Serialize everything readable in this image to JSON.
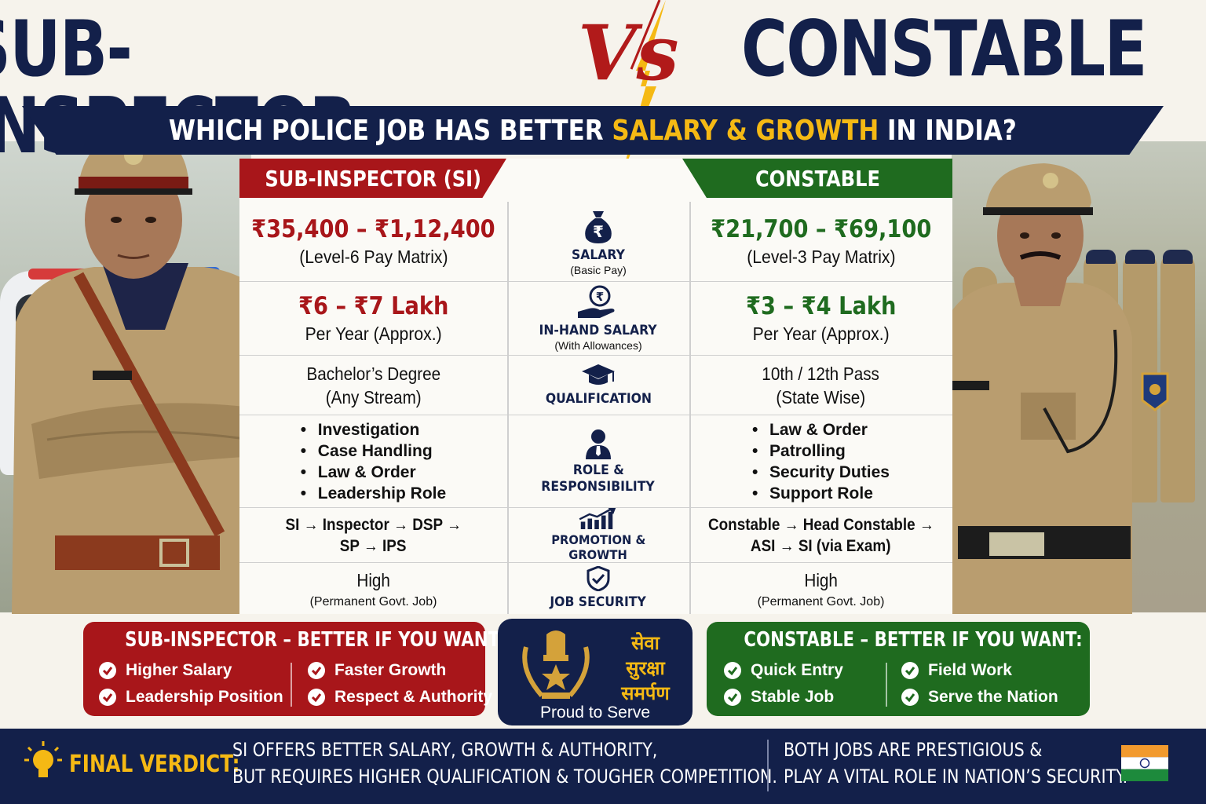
{
  "title": {
    "left": "SUB-INSPECTOR",
    "vs": "Vs",
    "right": "CONSTABLE"
  },
  "subtitle": {
    "before": "WHICH POLICE JOB HAS BETTER ",
    "highlight": "SALARY & GROWTH",
    "after": " IN INDIA?"
  },
  "columns": {
    "si": "SUB-INSPECTOR (SI)",
    "constable": "CONSTABLE"
  },
  "rows": {
    "salary": {
      "label": "SALARY",
      "sublabel": "(Basic Pay)",
      "si_value": "₹35,400 – ₹1,12,400",
      "si_note": "(Level-6 Pay Matrix)",
      "c_value": "₹21,700 – ₹69,100",
      "c_note": "(Level-3 Pay Matrix)"
    },
    "inhand": {
      "label": "IN-HAND SALARY",
      "sublabel": "(With Allowances)",
      "si_value": "₹6 – ₹7 Lakh",
      "si_note": "Per Year (Approx.)",
      "c_value": "₹3 – ₹4 Lakh",
      "c_note": "Per Year (Approx.)"
    },
    "qualification": {
      "label": "QUALIFICATION",
      "si_line1": "Bachelor’s Degree",
      "si_line2": "(Any Stream)",
      "c_line1": "10th / 12th Pass",
      "c_line2": "(State Wise)"
    },
    "role": {
      "label1": "ROLE &",
      "label2": "RESPONSIBILITY",
      "si_items": [
        "Investigation",
        "Case Handling",
        "Law & Order",
        "Leadership Role"
      ],
      "c_items": [
        "Law & Order",
        "Patrolling",
        "Security Duties",
        "Support Role"
      ]
    },
    "promotion": {
      "label1": "PROMOTION &",
      "label2": "GROWTH",
      "si_line1": "SI → Inspector → DSP →",
      "si_line2": "SP → IPS",
      "c_line1": "Constable → Head Constable →",
      "c_line2": "ASI → SI (via Exam)"
    },
    "security": {
      "label": "JOB SECURITY",
      "si_value": "High",
      "si_note": "(Permanent Govt. Job)",
      "c_value": "High",
      "c_note": "(Permanent Govt. Job)"
    }
  },
  "si_box": {
    "title": "SUB-INSPECTOR – BETTER IF YOU WANT:",
    "items": [
      "Higher Salary",
      "Faster Growth",
      "Leadership Position",
      "Respect & Authority"
    ]
  },
  "constable_box": {
    "title": "CONSTABLE – BETTER IF YOU WANT:",
    "items": [
      "Quick Entry",
      "Field Work",
      "Stable Job",
      "Serve the Nation"
    ]
  },
  "emblem": {
    "hindi": [
      "सेवा",
      "सुरक्षा",
      "समर्पण"
    ],
    "tagline": "Proud to Serve"
  },
  "verdict": {
    "label": "FINAL VERDICT:",
    "left_line1": "SI OFFERS BETTER SALARY, GROWTH & AUTHORITY,",
    "left_line2": "BUT REQUIRES HIGHER QUALIFICATION & TOUGHER COMPETITION.",
    "right_line1": "BOTH JOBS ARE PRESTIGIOUS &",
    "right_line2": "PLAY A VITAL ROLE IN NATION’S SECURITY."
  },
  "colors": {
    "navy": "#13204a",
    "red": "#a8161a",
    "green": "#1f6b1f",
    "gold": "#f5b914"
  }
}
